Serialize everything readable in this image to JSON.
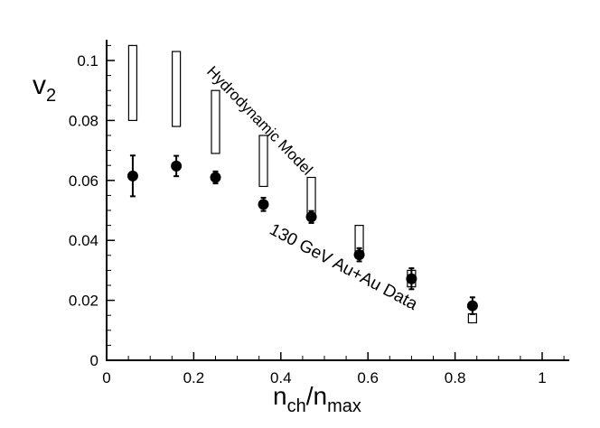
{
  "chart_data": {
    "type": "scatter",
    "xlabel": {
      "main": "n",
      "sub1": "ch",
      "slash": "/n",
      "sub2": "max"
    },
    "ylabel": {
      "main": "v",
      "sub": "2"
    },
    "xlim": [
      0,
      1.08
    ],
    "ylim": [
      0,
      0.106
    ],
    "xticks": [
      0,
      0.2,
      0.4,
      0.6,
      0.8,
      1
    ],
    "xtick_labels": [
      "0",
      "0.2",
      "0.4",
      "0.6",
      "0.8",
      "1"
    ],
    "yticks": [
      0,
      0.02,
      0.04,
      0.06,
      0.08,
      0.1
    ],
    "ytick_labels": [
      "0",
      "0.02",
      "0.04",
      "0.06",
      "0.08",
      "0.1"
    ],
    "grid": false,
    "series": [
      {
        "name": "130 GeV Au+Au Data",
        "marker": "filled-circle",
        "points": [
          {
            "x": 0.06,
            "y": 0.0615,
            "err": 0.0068
          },
          {
            "x": 0.16,
            "y": 0.0648,
            "err": 0.0034
          },
          {
            "x": 0.25,
            "y": 0.061,
            "err": 0.002
          },
          {
            "x": 0.36,
            "y": 0.052,
            "err": 0.0022
          },
          {
            "x": 0.47,
            "y": 0.0478,
            "err": 0.002
          },
          {
            "x": 0.58,
            "y": 0.0352,
            "err": 0.0022
          },
          {
            "x": 0.7,
            "y": 0.0272,
            "err": 0.0035
          },
          {
            "x": 0.84,
            "y": 0.0182,
            "err": 0.0028
          }
        ]
      },
      {
        "name": "Hydrodynamic Model",
        "marker": "open-box",
        "boxes": [
          {
            "x": 0.06,
            "low": 0.08,
            "high": 0.105
          },
          {
            "x": 0.16,
            "low": 0.078,
            "high": 0.103
          },
          {
            "x": 0.25,
            "low": 0.069,
            "high": 0.09
          },
          {
            "x": 0.36,
            "low": 0.058,
            "high": 0.075
          },
          {
            "x": 0.47,
            "low": 0.047,
            "high": 0.061
          },
          {
            "x": 0.58,
            "low": 0.036,
            "high": 0.045
          },
          {
            "x": 0.7,
            "low": 0.0245,
            "high": 0.03
          },
          {
            "x": 0.84,
            "low": 0.0125,
            "high": 0.0155
          }
        ]
      }
    ],
    "annotations": {
      "model": "Hydrodynamic Model",
      "data": "130 GeV Au+Au Data"
    }
  }
}
